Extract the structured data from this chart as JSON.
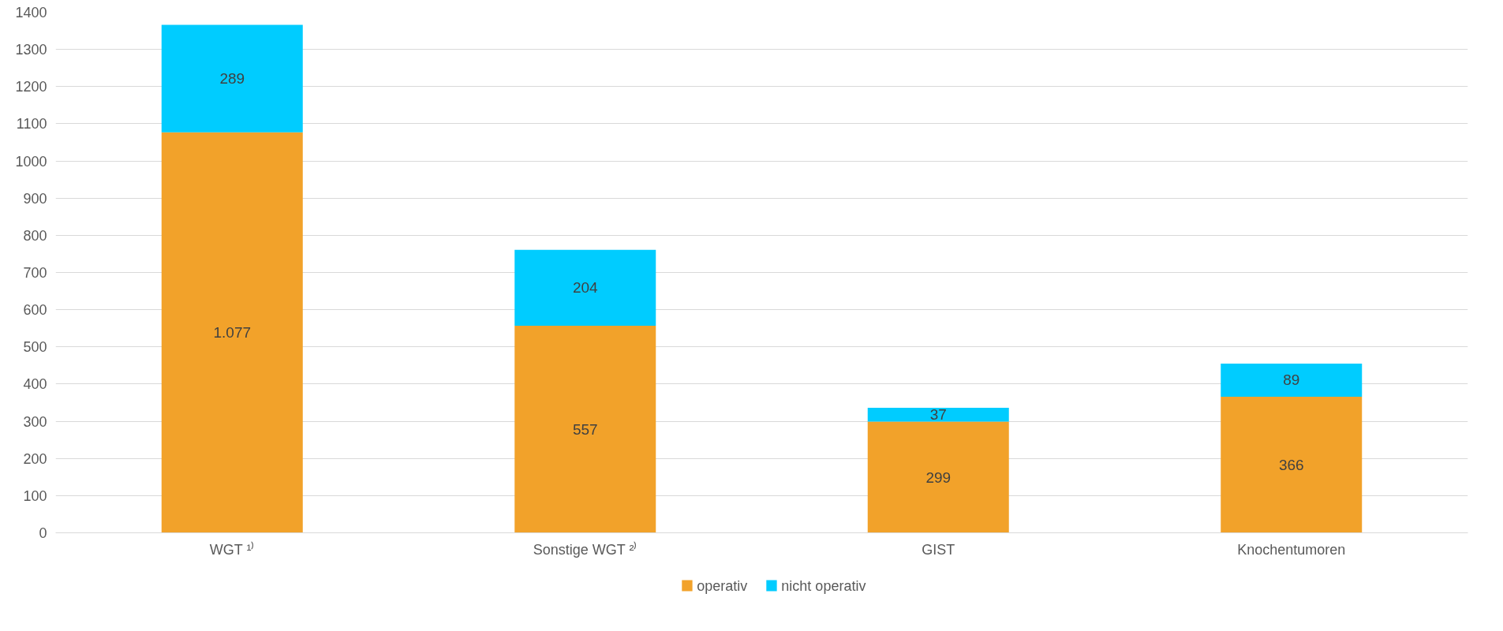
{
  "chart_data": {
    "type": "bar",
    "stacked": true,
    "categories": [
      "WGT ¹⁾",
      "Sonstige WGT ²⁾",
      "GIST",
      "Knochentumoren"
    ],
    "series": [
      {
        "name": "operativ",
        "color": "#f2a22a",
        "values": [
          1077,
          557,
          299,
          366
        ],
        "value_labels": [
          "1.077",
          "557",
          "299",
          "366"
        ]
      },
      {
        "name": "nicht operativ",
        "color": "#00ccff",
        "values": [
          289,
          204,
          37,
          89
        ],
        "value_labels": [
          "289",
          "204",
          "37",
          "89"
        ]
      }
    ],
    "ylim": [
      0,
      1400
    ],
    "yticks": [
      0,
      100,
      200,
      300,
      400,
      500,
      600,
      700,
      800,
      900,
      1000,
      1100,
      1200,
      1300,
      1400
    ],
    "grid": "y",
    "legend": "bottom"
  }
}
